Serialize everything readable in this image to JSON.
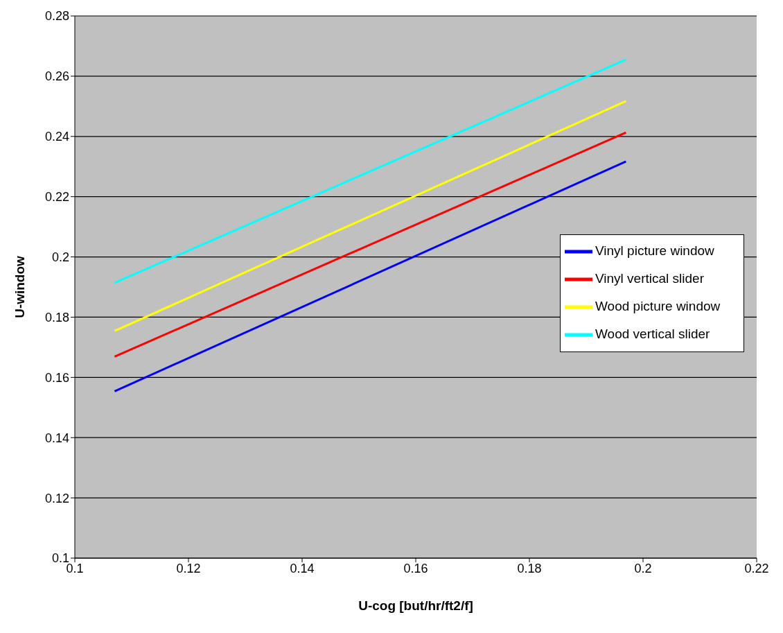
{
  "chart_data": {
    "type": "line",
    "xlabel": "U-cog [but/hr/ft2/f]",
    "ylabel": "U-window",
    "x": [
      0.107,
      0.197
    ],
    "series": [
      {
        "name": "Vinyl picture window",
        "color": "#0000ff",
        "values": [
          0.1554,
          0.2317
        ]
      },
      {
        "name": "Vinyl vertical slider",
        "color": "#ff0000",
        "values": [
          0.1669,
          0.2413
        ]
      },
      {
        "name": "Wood picture window",
        "color": "#ffff00",
        "values": [
          0.1754,
          0.2517
        ]
      },
      {
        "name": "Wood vertical slider",
        "color": "#00ffff",
        "values": [
          0.1914,
          0.2655
        ]
      }
    ],
    "xlim": [
      0.1,
      0.22
    ],
    "xticks": [
      0.1,
      0.12,
      0.14,
      0.16,
      0.18,
      0.2,
      0.22
    ],
    "ylim": [
      0.1,
      0.28
    ],
    "yticks": [
      0.1,
      0.12,
      0.14,
      0.16,
      0.18,
      0.2,
      0.22,
      0.24,
      0.26,
      0.28
    ],
    "grid": "y",
    "legend": "right",
    "marker": "none",
    "line_style": "solid"
  }
}
